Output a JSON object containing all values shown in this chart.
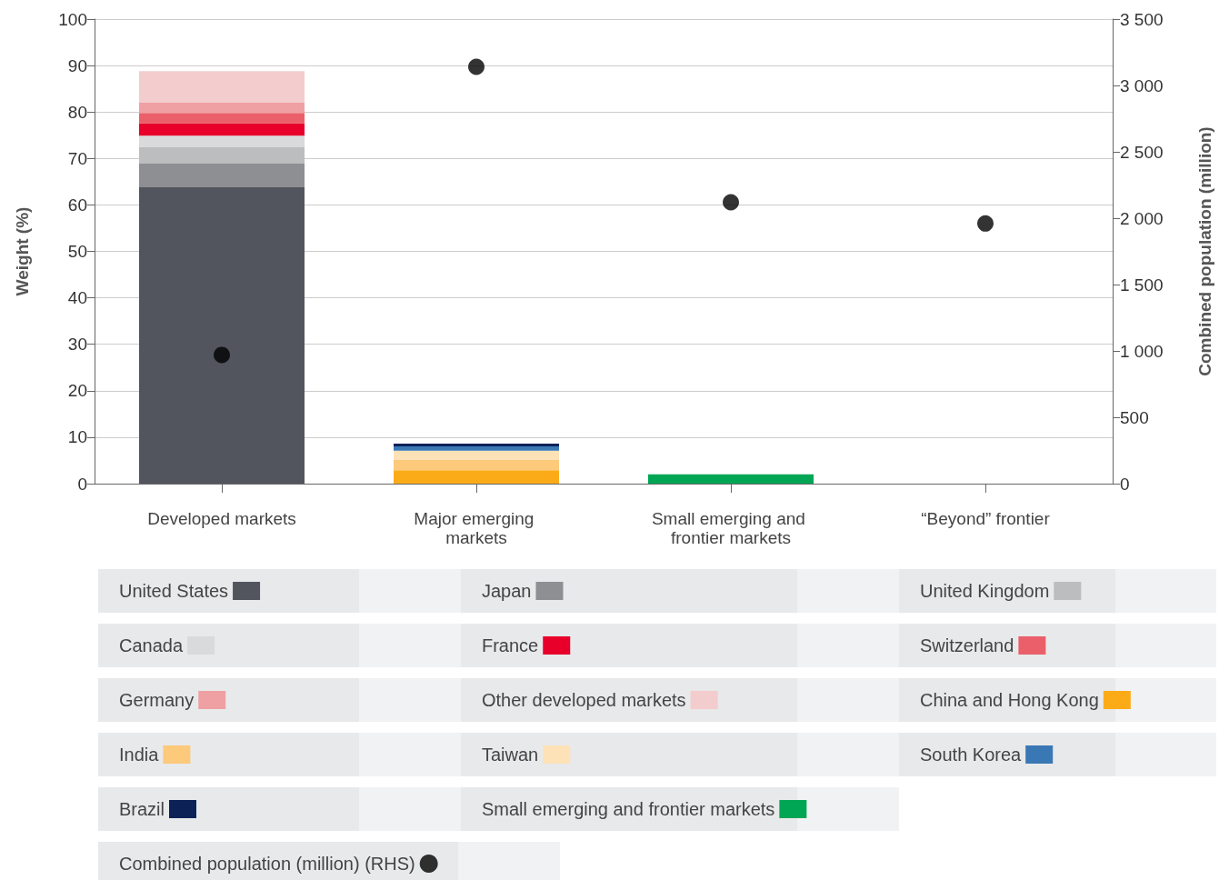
{
  "chart_data": {
    "type": "bar",
    "stacked": true,
    "ylabel": "Weight (%)",
    "y2label": "Combined population (million)",
    "categories": [
      "Developed markets",
      "Major emerging markets",
      "Small emerging and frontier markets",
      "“Beyond” frontier"
    ],
    "ylim": [
      0,
      100
    ],
    "yticks": [
      0,
      10,
      20,
      30,
      40,
      50,
      60,
      70,
      80,
      90,
      100
    ],
    "y2lim": [
      0,
      3500
    ],
    "y2ticks": [
      {
        "value": 0,
        "label": "0"
      },
      {
        "value": 500,
        "label": "500"
      },
      {
        "value": 1000,
        "label": "1 000"
      },
      {
        "value": 1500,
        "label": "1 500"
      },
      {
        "value": 2000,
        "label": "2 000"
      },
      {
        "value": 2500,
        "label": "2 500"
      },
      {
        "value": 3000,
        "label": "3 000"
      },
      {
        "value": 3500,
        "label": "3 500"
      }
    ],
    "grid": "y",
    "legend": "bottom",
    "series": [
      {
        "name": "United States",
        "color": "#52555e",
        "values": [
          63.8,
          null,
          null,
          null
        ]
      },
      {
        "name": "Japan",
        "color": "#8e8f93",
        "values": [
          5.1,
          null,
          null,
          null
        ]
      },
      {
        "name": "United Kingdom",
        "color": "#bcbdbf",
        "values": [
          3.5,
          null,
          null,
          null
        ]
      },
      {
        "name": "Canada",
        "color": "#d9dadc",
        "values": [
          2.5,
          null,
          null,
          null
        ]
      },
      {
        "name": "France",
        "color": "#e8002a",
        "values": [
          2.7,
          null,
          null,
          null
        ]
      },
      {
        "name": "Switzerland",
        "color": "#ea5f69",
        "values": [
          2.2,
          null,
          null,
          null
        ]
      },
      {
        "name": "Germany",
        "color": "#efa0a3",
        "values": [
          2.2,
          null,
          null,
          null
        ]
      },
      {
        "name": "Other developed markets",
        "color": "#f3cccd",
        "values": [
          6.8,
          null,
          null,
          null
        ]
      },
      {
        "name": "China and Hong Kong",
        "color": "#fbab18",
        "values": [
          null,
          2.9,
          null,
          null
        ]
      },
      {
        "name": "India",
        "color": "#fdc97a",
        "values": [
          null,
          2.2,
          null,
          null
        ]
      },
      {
        "name": "Taiwan",
        "color": "#fee2b7",
        "values": [
          null,
          2.0,
          null,
          null
        ]
      },
      {
        "name": "South Korea",
        "color": "#3a78b5",
        "values": [
          null,
          0.9,
          null,
          null
        ]
      },
      {
        "name": "Brazil",
        "color": "#0c2257",
        "values": [
          null,
          0.6,
          null,
          null
        ]
      },
      {
        "name": "Small emerging and frontier markets",
        "color": "#00a653",
        "values": [
          null,
          null,
          2.0,
          null
        ]
      },
      {
        "name": "Combined population (million) (RHS)",
        "type": "scatter",
        "axis": "y2",
        "marker": "circle",
        "color": "#000000",
        "values": [
          970,
          3140,
          2120,
          1960
        ]
      }
    ]
  }
}
